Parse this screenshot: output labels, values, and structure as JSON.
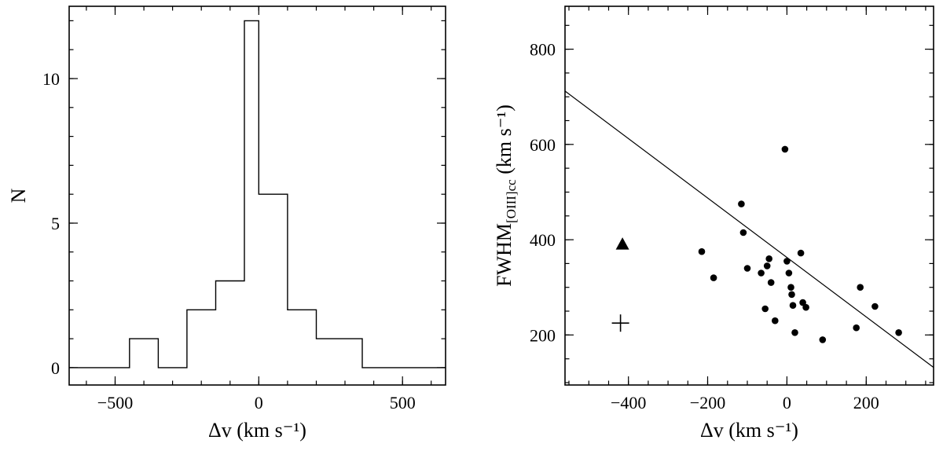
{
  "figure": {
    "background": "#ffffff",
    "ink": "#000000"
  },
  "chart_data": [
    {
      "type": "histogram",
      "title": "",
      "xlabel": "Δv  (km s⁻¹)",
      "ylabel": "N",
      "xlim": [
        -660,
        650
      ],
      "ylim": [
        -0.6,
        12.5
      ],
      "xticks_major": [
        -500,
        0,
        500
      ],
      "xtick_labels": [
        "−500",
        "0",
        "500"
      ],
      "xtick_minor_step": 100,
      "yticks_major": [
        0,
        5,
        10
      ],
      "ytick_labels": [
        "0",
        "5",
        "10"
      ],
      "ytick_minor_step": 1,
      "grid": false,
      "legend": false,
      "bin_edges": [
        -660,
        -450,
        -350,
        -250,
        -150,
        -50,
        0,
        100,
        200,
        360,
        650
      ],
      "bin_counts": [
        0,
        1,
        0,
        2,
        3,
        12,
        6,
        2,
        1,
        0
      ]
    },
    {
      "type": "scatter",
      "title": "",
      "xlabel": "Δv  (km s⁻¹)",
      "ylabel_parts": [
        {
          "t": "FWHM"
        },
        {
          "t": "[OIII]cc",
          "sub": true
        },
        {
          "t": "  (km s⁻¹)"
        }
      ],
      "xlim": [
        -560,
        370
      ],
      "ylim": [
        95,
        890
      ],
      "xticks_major": [
        -400,
        -200,
        0,
        200
      ],
      "xtick_labels": [
        "−400",
        "−200",
        "0",
        "200"
      ],
      "xtick_minor_step": 50,
      "yticks_major": [
        200,
        400,
        600,
        800
      ],
      "ytick_labels": [
        "200",
        "400",
        "600",
        "800"
      ],
      "ytick_minor_step": 50,
      "grid": false,
      "legend": false,
      "points": [
        [
          -215,
          375
        ],
        [
          -185,
          320
        ],
        [
          -115,
          475
        ],
        [
          -110,
          415
        ],
        [
          -100,
          340
        ],
        [
          -65,
          330
        ],
        [
          -55,
          255
        ],
        [
          -50,
          345
        ],
        [
          -45,
          360
        ],
        [
          -40,
          310
        ],
        [
          -30,
          230
        ],
        [
          -5,
          590
        ],
        [
          0,
          355
        ],
        [
          5,
          330
        ],
        [
          10,
          300
        ],
        [
          12,
          285
        ],
        [
          15,
          262
        ],
        [
          20,
          205
        ],
        [
          35,
          372
        ],
        [
          40,
          268
        ],
        [
          48,
          258
        ],
        [
          90,
          190
        ],
        [
          175,
          215
        ],
        [
          185,
          300
        ],
        [
          222,
          260
        ],
        [
          282,
          205
        ]
      ],
      "triangle_point": [
        -415,
        390
      ],
      "cross_point": [
        -420,
        225
      ],
      "fit_line": {
        "x": [
          -560,
          370
        ],
        "y": [
          712,
          132
        ]
      }
    }
  ]
}
